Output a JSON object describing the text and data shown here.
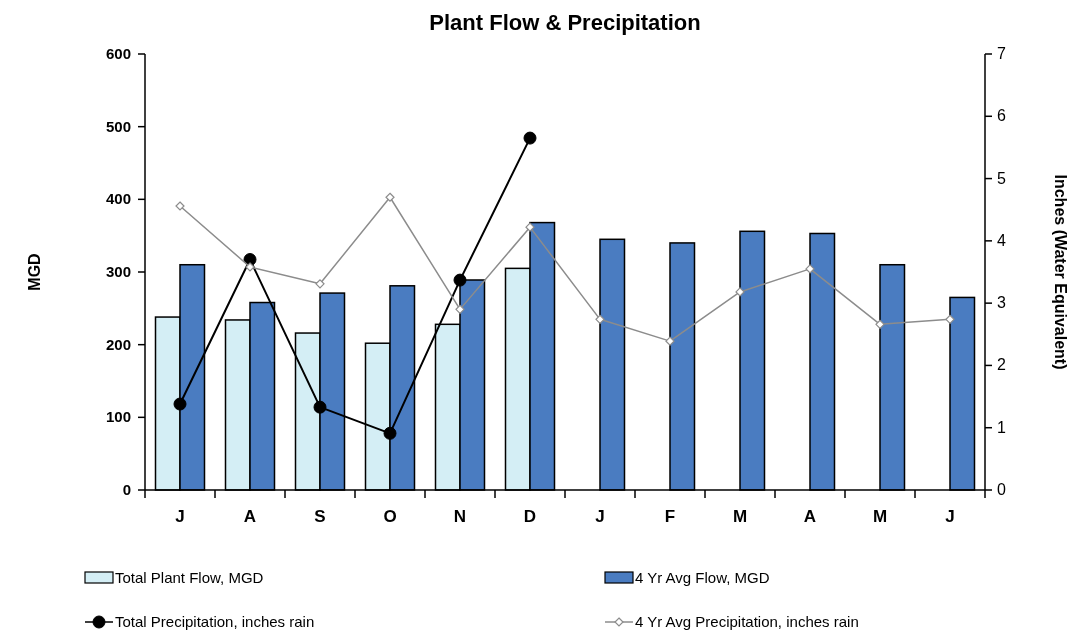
{
  "chart_data": {
    "type": "bar",
    "title": "Plant Flow & Precipitation",
    "ylabel": "MGD",
    "y2label": "Inches (Water Equivalent)",
    "categories": [
      "J",
      "A",
      "S",
      "O",
      "N",
      "D",
      "J",
      "F",
      "M",
      "A",
      "M",
      "J"
    ],
    "series": [
      {
        "name": "Total Plant Flow, MGD",
        "color": "#d4eef5",
        "values": [
          238,
          234,
          216,
          202,
          228,
          305,
          null,
          null,
          null,
          null,
          null,
          null
        ]
      },
      {
        "name": "4 Yr Avg Flow, MGD",
        "color": "#4a7cc1",
        "values": [
          310,
          258,
          271,
          281,
          289,
          368,
          345,
          340,
          356,
          353,
          310,
          265
        ]
      },
      {
        "name": "Total Precipitation, inches rain",
        "type": "line",
        "axis": "y2",
        "color": "#000000",
        "marker": "circle",
        "values": [
          1.38,
          3.7,
          1.33,
          0.91,
          3.37,
          5.65,
          null,
          null,
          null,
          null,
          null,
          null
        ]
      },
      {
        "name": "4 Yr Avg Precipitation, inches rain",
        "type": "line",
        "axis": "y2",
        "color": "#8c8c8c",
        "marker": "diamond",
        "values": [
          4.56,
          3.58,
          3.31,
          4.7,
          2.9,
          4.22,
          2.74,
          2.39,
          3.18,
          3.55,
          2.66,
          2.74
        ]
      }
    ],
    "ylim": [
      0,
      600
    ],
    "yticks": [
      0,
      100,
      200,
      300,
      400,
      500,
      600
    ],
    "y2lim": [
      0,
      7
    ],
    "y2ticks": [
      0,
      1,
      2,
      3,
      4,
      5,
      6,
      7
    ],
    "grid": false,
    "legend": "bottom"
  }
}
